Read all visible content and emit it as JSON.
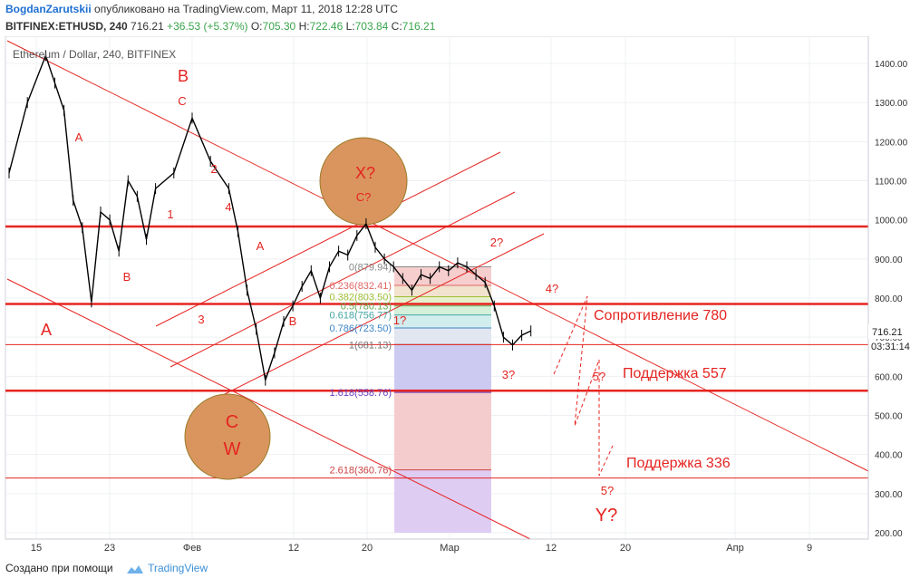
{
  "header": {
    "author": "BogdanZarutskii",
    "published": "опубликовано на TradingView.com, Март 11, 2018 12:28 UTC",
    "symbol": "BITFINEX:ETHUSD, 240",
    "price": "716.21",
    "change": "+36.53 (+5.37%)",
    "open_label": "O:",
    "open": "705.30",
    "high_label": "H:",
    "high": "722.46",
    "low_label": "L:",
    "low": "703.84",
    "close_label": "C:",
    "close": "716.21"
  },
  "chart_title": "Ethereum / Dollar, 240, BITFINEX",
  "footer": {
    "created_with": "Создано при помощи",
    "brand": "TradingView"
  },
  "colors": {
    "red": "#e52421",
    "up": "#3aa44c",
    "circle_fill": "#d9955d",
    "circle_stroke": "#9a7b2a",
    "fib_pink": "#f2c4c6",
    "fib_purple": "#c6c2f2"
  },
  "chart_data": {
    "type": "line",
    "title": "Ethereum / Dollar, 240, BITFINEX",
    "ylim": [
      190,
      1450
    ],
    "y_ticks": [
      1400,
      1300,
      1200,
      1100,
      1000,
      900,
      800,
      700,
      600,
      500,
      400,
      300,
      200
    ],
    "y_tick_labels": [
      "1400.00",
      "1300.00",
      "1200.00",
      "1100.00",
      "1000.00",
      "900.00",
      "800.00",
      "700.00",
      "600.00",
      "500.00",
      "400.00",
      "300.00",
      "200.00"
    ],
    "x_tick_labels": [
      "15",
      "23",
      "Фев",
      "12",
      "20",
      "Мар",
      "12",
      "20",
      "Апр",
      "9"
    ],
    "last_price": "716.21",
    "countdown": "03:31:14",
    "price_series": {
      "name": "",
      "x": [
        0,
        2,
        4,
        5,
        6,
        7,
        8,
        9,
        10,
        11,
        12,
        13,
        14,
        15,
        16,
        18,
        20,
        22,
        24,
        25,
        26,
        27,
        28,
        29,
        30,
        31,
        32,
        33,
        34,
        35,
        36,
        37,
        38,
        39,
        40,
        41,
        42,
        43,
        44,
        45,
        46,
        47,
        48,
        49,
        50,
        51,
        52,
        53,
        54,
        55,
        56,
        57
      ],
      "values": [
        1120,
        1300,
        1420,
        1350,
        1280,
        1050,
        980,
        790,
        1020,
        1000,
        920,
        1100,
        1060,
        950,
        1080,
        1120,
        1260,
        1150,
        1080,
        970,
        820,
        720,
        590,
        660,
        740,
        780,
        830,
        870,
        800,
        880,
        920,
        910,
        960,
        990,
        930,
        900,
        880,
        850,
        820,
        860,
        850,
        880,
        870,
        890,
        880,
        860,
        840,
        780,
        700,
        680,
        705,
        716
      ]
    },
    "fib_levels": [
      {
        "ratio": "0",
        "price": 879.94,
        "label": "0(879.94)"
      },
      {
        "ratio": "0.236",
        "price": 832.41,
        "label": "0.236(832.41)"
      },
      {
        "ratio": "0.382",
        "price": 803.5,
        "label": "0.382(803.50)"
      },
      {
        "ratio": "0.5",
        "price": 780.13,
        "label": "0.5(780.13)"
      },
      {
        "ratio": "0.618",
        "price": 756.77,
        "label": "0.618(756.77)"
      },
      {
        "ratio": "0.786",
        "price": 723.5,
        "label": "0.786(723.50)"
      },
      {
        "ratio": "1",
        "price": 681.13,
        "label": "1(681.13)"
      },
      {
        "ratio": "1.618",
        "price": 558.76,
        "label": "1.618(558.76)"
      },
      {
        "ratio": "2.618",
        "price": 360.76,
        "label": "2.618(360.76)"
      }
    ],
    "horizontal_levels": [
      {
        "price": 983,
        "label": ""
      },
      {
        "price": 785,
        "label": "Сопротивление 780"
      },
      {
        "price": 681,
        "label": ""
      },
      {
        "price": 563,
        "label": "Поддержка 557"
      },
      {
        "price": 340,
        "label": "Поддержка 336"
      }
    ],
    "wave_labels": [
      {
        "text": "B",
        "x": 18,
        "price": 1365
      },
      {
        "text": "C",
        "x": 18.5,
        "price": 1310
      },
      {
        "text": "A",
        "x": 7.5,
        "price": 1195
      },
      {
        "text": "2",
        "x": 21.5,
        "price": 1140
      },
      {
        "text": "1",
        "x": 17,
        "price": 1030
      },
      {
        "text": "4",
        "x": 22.5,
        "price": 1045
      },
      {
        "text": "B",
        "x": 12.5,
        "price": 855
      },
      {
        "text": "A",
        "x": 4.5,
        "price": 740
      },
      {
        "text": "3",
        "x": 20,
        "price": 737
      },
      {
        "text": "A",
        "x": 26,
        "price": 962
      },
      {
        "text": "B",
        "x": 29.5,
        "price": 735
      },
      {
        "text": "X?",
        "x": 37,
        "price": 1105
      },
      {
        "text": "C?",
        "x": 37,
        "price": 1045
      },
      {
        "text": "2?",
        "x": 50.5,
        "price": 962
      },
      {
        "text": "4?",
        "x": 57,
        "price": 808
      },
      {
        "text": "1?",
        "x": 41,
        "price": 738
      },
      {
        "text": "3?",
        "x": 52,
        "price": 608
      },
      {
        "text": "5?",
        "x": 61.5,
        "price": 605
      },
      {
        "text": "5?",
        "x": 62.5,
        "price": 315
      },
      {
        "text": "Y?",
        "x": 62.5,
        "price": 235
      },
      {
        "text": "C",
        "x": 23.5,
        "price": 490
      },
      {
        "text": "W",
        "x": 23.5,
        "price": 435
      }
    ]
  }
}
